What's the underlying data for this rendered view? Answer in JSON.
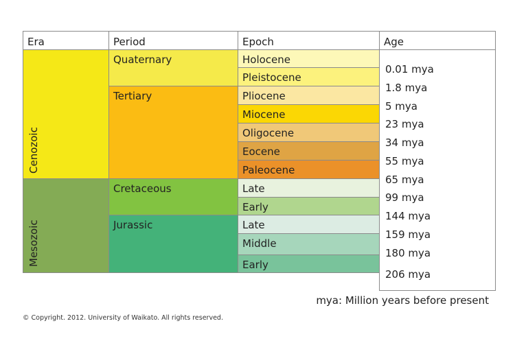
{
  "headers": {
    "era": "Era",
    "period": "Period",
    "epoch": "Epoch",
    "age": "Age"
  },
  "eras": [
    {
      "name": "Cenozoic",
      "color": "#f5e817"
    },
    {
      "name": "Mesozoic",
      "color": "#84ab55"
    }
  ],
  "periods": [
    {
      "name": "Quaternary",
      "color": "#f5ea4a"
    },
    {
      "name": "Tertiary",
      "color": "#fbbc13"
    },
    {
      "name": "Cretaceous",
      "color": "#82c341"
    },
    {
      "name": "Jurassic",
      "color": "#44b279"
    }
  ],
  "epochs": [
    {
      "name": "Holocene",
      "color": "#fdf8b8"
    },
    {
      "name": "Pleistocene",
      "color": "#fcf27d"
    },
    {
      "name": "Pliocene",
      "color": "#fbe7a2"
    },
    {
      "name": "Miocene",
      "color": "#fbd704"
    },
    {
      "name": "Oligocene",
      "color": "#f0c878"
    },
    {
      "name": "Eocene",
      "color": "#dfa444"
    },
    {
      "name": "Paleocene",
      "color": "#eb9129"
    },
    {
      "name": "Late",
      "color": "#e8f2de"
    },
    {
      "name": "Early",
      "color": "#b0d68e"
    },
    {
      "name": "Late",
      "color": "#dcece3"
    },
    {
      "name": "Middle",
      "color": "#a6d6bb"
    },
    {
      "name": "Early",
      "color": "#79c39b"
    }
  ],
  "ages": [
    "0.01 mya",
    "1.8 mya",
    "5 mya",
    "23 mya",
    "34 mya",
    "55 mya",
    "65 mya",
    "99 mya",
    "144 mya",
    "159 mya",
    "180 mya",
    "206 mya"
  ],
  "note": "mya: Million years before present",
  "copyright": "© Copyright. 2012. University of Waikato. All rights reserved."
}
